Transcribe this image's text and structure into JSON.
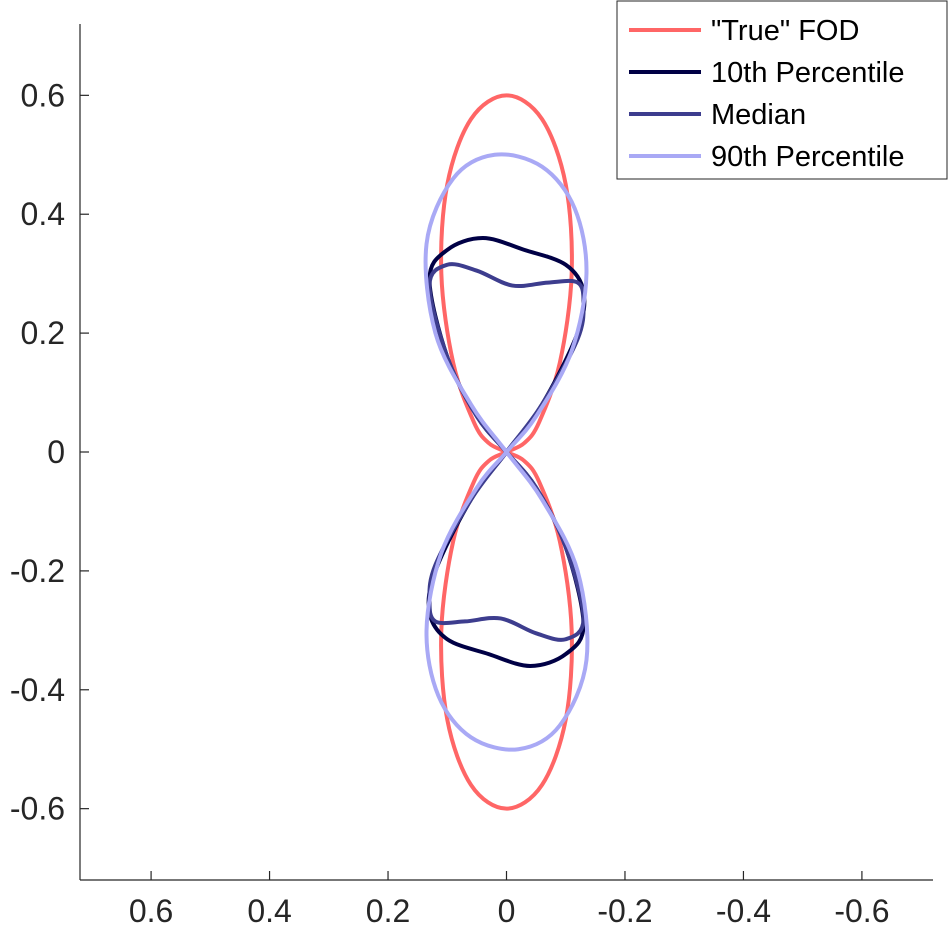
{
  "chart_data": {
    "type": "line",
    "title": "",
    "xlabel": "",
    "ylabel": "",
    "xlim": [
      0.72,
      -0.72
    ],
    "ylim": [
      -0.72,
      0.72
    ],
    "x_reversed": true,
    "xticks": [
      0.6,
      0.4,
      0.2,
      0,
      -0.2,
      -0.4,
      -0.6
    ],
    "xtick_labels": [
      "0.6",
      "0.4",
      "0.2",
      "0",
      "-0.2",
      "-0.4",
      "-0.6"
    ],
    "yticks": [
      0.6,
      0.4,
      0.2,
      0,
      -0.2,
      -0.4,
      -0.6
    ],
    "ytick_labels": [
      "0.6",
      "0.4",
      "0.2",
      "0",
      "-0.2",
      "-0.4",
      "-0.6"
    ],
    "grid": false,
    "legend_position": "top-right",
    "series": [
      {
        "name": "\"True\" FOD",
        "color": "#ff6666",
        "points": [
          [
            0.0,
            0.6
          ],
          [
            -0.06,
            0.56
          ],
          [
            -0.1,
            0.45
          ],
          [
            -0.11,
            0.3
          ],
          [
            -0.09,
            0.15
          ],
          [
            -0.055,
            0.05
          ],
          [
            -0.03,
            0.015
          ],
          [
            0.0,
            0.0
          ],
          [
            0.03,
            -0.015
          ],
          [
            0.055,
            -0.05
          ],
          [
            0.09,
            -0.15
          ],
          [
            0.11,
            -0.3
          ],
          [
            0.1,
            -0.45
          ],
          [
            0.06,
            -0.56
          ],
          [
            0.0,
            -0.6
          ],
          [
            -0.06,
            -0.56
          ],
          [
            -0.1,
            -0.45
          ],
          [
            -0.11,
            -0.3
          ],
          [
            -0.09,
            -0.15
          ],
          [
            -0.055,
            -0.05
          ],
          [
            -0.03,
            -0.015
          ],
          [
            0.0,
            0.0
          ],
          [
            0.03,
            0.015
          ],
          [
            0.055,
            0.05
          ],
          [
            0.09,
            0.15
          ],
          [
            0.11,
            0.3
          ],
          [
            0.1,
            0.45
          ],
          [
            0.06,
            0.56
          ],
          [
            0.0,
            0.6
          ]
        ]
      },
      {
        "name": "10th Percentile",
        "color": "#000045",
        "points": [
          [
            0.0,
            0.0
          ],
          [
            -0.06,
            0.08
          ],
          [
            -0.12,
            0.2
          ],
          [
            -0.13,
            0.27
          ],
          [
            -0.1,
            0.315
          ],
          [
            -0.03,
            0.34
          ],
          [
            0.04,
            0.36
          ],
          [
            0.1,
            0.34
          ],
          [
            0.13,
            0.29
          ],
          [
            0.1,
            0.16
          ],
          [
            0.05,
            0.06
          ],
          [
            0.0,
            0.0
          ],
          [
            -0.05,
            -0.06
          ],
          [
            -0.1,
            -0.16
          ],
          [
            -0.13,
            -0.29
          ],
          [
            -0.1,
            -0.34
          ],
          [
            -0.04,
            -0.36
          ],
          [
            0.03,
            -0.34
          ],
          [
            0.1,
            -0.315
          ],
          [
            0.13,
            -0.27
          ],
          [
            0.12,
            -0.2
          ],
          [
            0.06,
            -0.08
          ],
          [
            0.0,
            0.0
          ]
        ]
      },
      {
        "name": "Median",
        "color": "#3d3d8e",
        "points": [
          [
            0.0,
            0.0
          ],
          [
            -0.06,
            0.08
          ],
          [
            -0.12,
            0.19
          ],
          [
            -0.13,
            0.25
          ],
          [
            -0.12,
            0.285
          ],
          [
            -0.07,
            0.285
          ],
          [
            -0.01,
            0.28
          ],
          [
            0.05,
            0.305
          ],
          [
            0.1,
            0.315
          ],
          [
            0.13,
            0.28
          ],
          [
            0.1,
            0.16
          ],
          [
            0.05,
            0.06
          ],
          [
            0.0,
            0.0
          ],
          [
            -0.05,
            -0.06
          ],
          [
            -0.1,
            -0.16
          ],
          [
            -0.13,
            -0.28
          ],
          [
            -0.1,
            -0.315
          ],
          [
            -0.05,
            -0.305
          ],
          [
            0.01,
            -0.28
          ],
          [
            0.07,
            -0.285
          ],
          [
            0.12,
            -0.285
          ],
          [
            0.13,
            -0.25
          ],
          [
            0.12,
            -0.19
          ],
          [
            0.06,
            -0.08
          ],
          [
            0.0,
            0.0
          ]
        ]
      },
      {
        "name": "90th Percentile",
        "color": "#a9a9f5",
        "points": [
          [
            0.0,
            0.0
          ],
          [
            -0.05,
            0.06
          ],
          [
            -0.11,
            0.17
          ],
          [
            -0.135,
            0.3
          ],
          [
            -0.115,
            0.41
          ],
          [
            -0.06,
            0.48
          ],
          [
            0.02,
            0.5
          ],
          [
            0.09,
            0.46
          ],
          [
            0.135,
            0.35
          ],
          [
            0.12,
            0.2
          ],
          [
            0.06,
            0.08
          ],
          [
            0.0,
            0.0
          ],
          [
            -0.06,
            -0.08
          ],
          [
            -0.12,
            -0.2
          ],
          [
            -0.135,
            -0.35
          ],
          [
            -0.09,
            -0.46
          ],
          [
            -0.02,
            -0.5
          ],
          [
            0.06,
            -0.48
          ],
          [
            0.115,
            -0.41
          ],
          [
            0.135,
            -0.3
          ],
          [
            0.11,
            -0.17
          ],
          [
            0.05,
            -0.06
          ],
          [
            0.0,
            0.0
          ]
        ]
      }
    ]
  }
}
